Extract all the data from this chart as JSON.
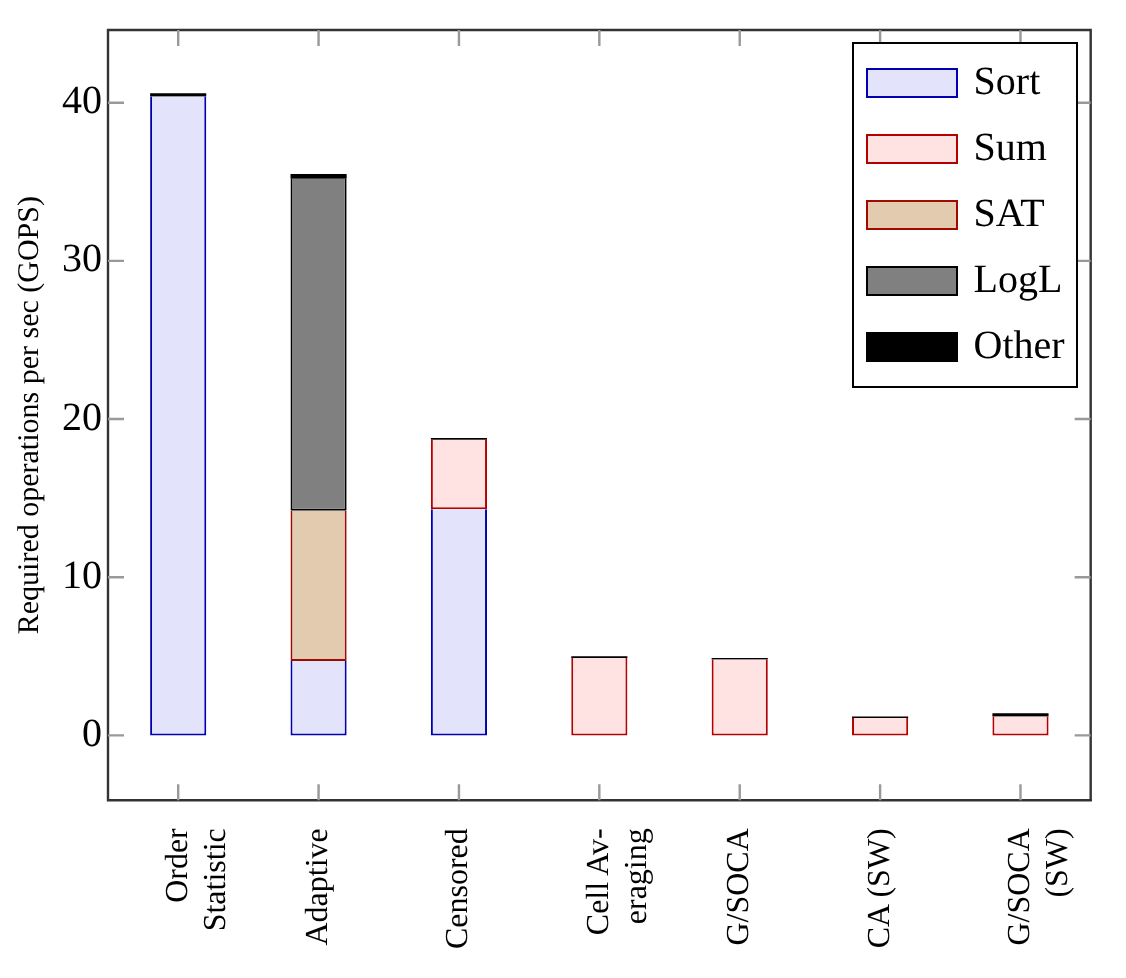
{
  "chart_data": {
    "type": "bar",
    "stacked": true,
    "ylabel": "Required operations per sec (GOPS)",
    "categories": [
      "Order Statistic",
      "Adaptive",
      "Censored",
      "Cell Av- eraging",
      "G/SOCA",
      "CA (SW)",
      "G/SOCA (SW)"
    ],
    "series": [
      {
        "name": "Sort",
        "color": "#e3e3fb",
        "values": [
          40.4,
          4.7,
          14.3,
          null,
          null,
          null,
          null
        ]
      },
      {
        "name": "Sum",
        "color": "#ffe3e3",
        "values": [
          null,
          null,
          4.4,
          4.9,
          4.8,
          1.1,
          1.2
        ]
      },
      {
        "name": "SAT",
        "color": "#e3cbb0",
        "values": [
          null,
          9.5,
          null,
          null,
          null,
          null,
          null
        ]
      },
      {
        "name": "LogL",
        "color": "#808080",
        "values": [
          null,
          21.0,
          null,
          null,
          null,
          null,
          null
        ]
      },
      {
        "name": "Other",
        "color": "#000000",
        "values": [
          0.2,
          0.3,
          0.1,
          0.1,
          0.1,
          0.1,
          0.2
        ]
      }
    ],
    "ylim": [
      -4.1,
      44.6
    ],
    "yticks": [
      0,
      10,
      20,
      30,
      40
    ],
    "grid": false,
    "legend": "top right"
  }
}
